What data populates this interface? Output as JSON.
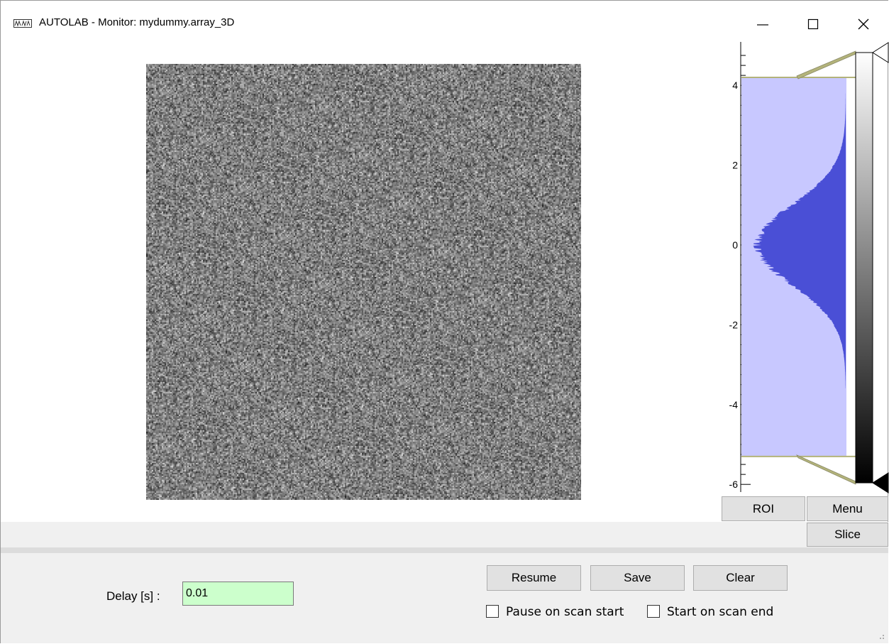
{
  "window": {
    "title": "AUTOLAB - Monitor: mydummy.array_3D",
    "app_icon": "waveform-icon",
    "controls": [
      "minimize-icon",
      "maximize-icon",
      "close-icon"
    ]
  },
  "image_view": {
    "description_icon": "noise-image"
  },
  "histogram": {
    "axis_ticks": [
      "4",
      "2",
      "0",
      "-2",
      "-4",
      "-6"
    ],
    "level_max": 4.2,
    "level_min": -5.3,
    "colors": {
      "region": "#c8c8ff",
      "fill": "#4a4fd6",
      "handle": "#b3b37a"
    }
  },
  "buttons": {
    "roi": "ROI",
    "menu": "Menu",
    "slice": "Slice",
    "resume": "Resume",
    "save": "Save",
    "clear": "Clear"
  },
  "delay": {
    "label": "Delay [s] :",
    "value": "0.01",
    "bg_color": "#ccffcc"
  },
  "options": {
    "pause_on_scan_start": {
      "label": "Pause on scan start",
      "checked": false
    },
    "start_on_scan_end": {
      "label": "Start on scan end",
      "checked": false
    }
  }
}
